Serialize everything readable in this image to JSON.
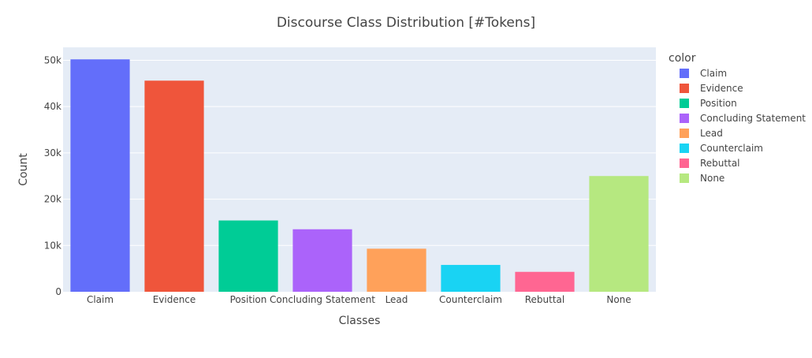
{
  "chart_data": {
    "type": "bar",
    "title": "Discourse Class Distribution [#Tokens]",
    "xlabel": "Classes",
    "ylabel": "Count",
    "categories": [
      "Claim",
      "Evidence",
      "Position",
      "Concluding Statement",
      "Lead",
      "Counterclaim",
      "Rebuttal",
      "None"
    ],
    "values": [
      50200,
      45600,
      15400,
      13500,
      9300,
      5800,
      4300,
      25000
    ],
    "colors": [
      "#636efa",
      "#ef553b",
      "#00cc96",
      "#ab63fa",
      "#ffa15a",
      "#19d3f3",
      "#ff6692",
      "#b6e880"
    ],
    "ylim": [
      0,
      52800
    ],
    "yticks": [
      0,
      10000,
      20000,
      30000,
      40000,
      50000
    ],
    "ytick_labels": [
      "0",
      "10k",
      "20k",
      "30k",
      "40k",
      "50k"
    ],
    "grid": true,
    "plot_background": "#e5ecf6",
    "legend": {
      "title": "color",
      "placement": "right",
      "entries": [
        "Claim",
        "Evidence",
        "Position",
        "Concluding Statement",
        "Lead",
        "Counterclaim",
        "Rebuttal",
        "None"
      ]
    }
  }
}
